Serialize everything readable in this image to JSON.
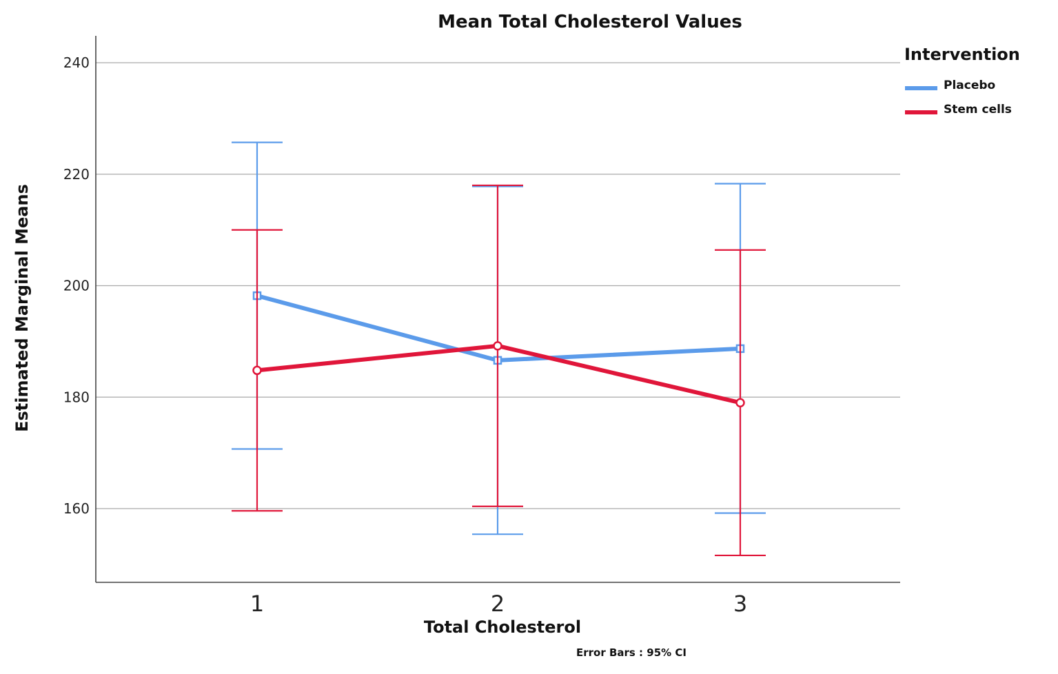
{
  "chart_data": {
    "type": "line",
    "title": "Mean Total Cholesterol Values",
    "xlabel": "Total Cholesterol",
    "ylabel": "Estimated Marginal Means",
    "categories": [
      "1",
      "2",
      "3"
    ],
    "y_ticks": [
      "160",
      "180",
      "200",
      "220",
      "240"
    ],
    "ylim": [
      147,
      246
    ],
    "grid": true,
    "legend": {
      "title": "Intervention",
      "placement": "right"
    },
    "series": [
      {
        "name": "Placebo",
        "color": "#5b9bea",
        "values": [
          198.2,
          186.6,
          188.7
        ],
        "ci_low": [
          170.7,
          155.4,
          159.2
        ],
        "ci_high": [
          225.7,
          217.8,
          218.3
        ]
      },
      {
        "name": "Stem cells",
        "color": "#e0163a",
        "values": [
          184.8,
          189.2,
          179.0
        ],
        "ci_low": [
          159.6,
          160.4,
          151.6
        ],
        "ci_high": [
          210.0,
          218.0,
          206.4
        ]
      }
    ],
    "footnote": "Error Bars : 95% CI"
  }
}
